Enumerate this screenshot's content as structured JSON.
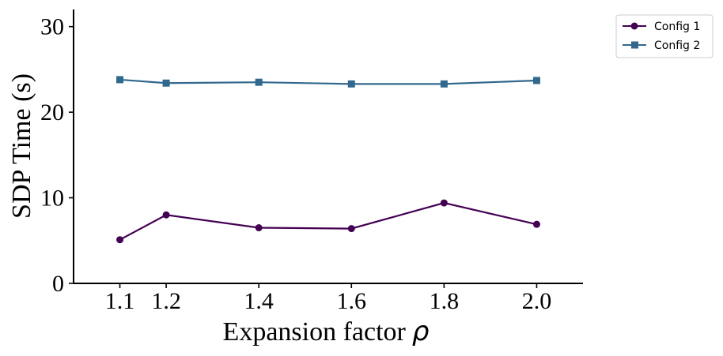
{
  "chart_data": {
    "type": "line",
    "xlabel": "Expansion factor",
    "xlabel_symbol": "ρ",
    "ylabel": "SDP Time (s)",
    "x": [
      1.1,
      1.2,
      1.4,
      1.6,
      1.8,
      2.0
    ],
    "x_tick_labels": [
      "1.1",
      "1.2",
      "1.4",
      "1.6",
      "1.8",
      "2.0"
    ],
    "y_ticks": [
      0,
      10,
      20,
      30
    ],
    "y_tick_labels": [
      "0",
      "10",
      "20",
      "30"
    ],
    "xlim": [
      1.0,
      2.1
    ],
    "ylim": [
      0,
      32
    ],
    "grid": false,
    "legend_position": "outside-top-right",
    "series": [
      {
        "name": "Config 1",
        "marker": "circle",
        "color": "#440154",
        "values": [
          5.1,
          8.0,
          6.5,
          6.4,
          9.4,
          6.9
        ]
      },
      {
        "name": "Config 2",
        "marker": "square",
        "color": "#31688e",
        "values": [
          23.8,
          23.4,
          23.5,
          23.3,
          23.3,
          23.7
        ]
      }
    ]
  }
}
